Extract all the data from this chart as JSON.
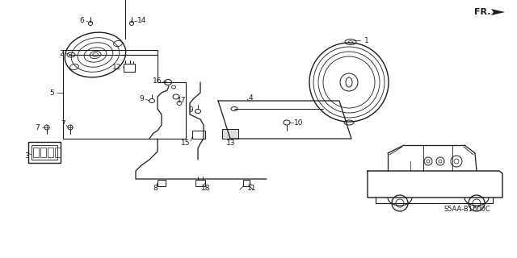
{
  "bg_color": "#ffffff",
  "line_color": "#1a1a1a",
  "text_color": "#1a1a1a",
  "diagram_code": "S5AA-B1600C",
  "fr_label": "FR.",
  "figsize": [
    6.4,
    3.2
  ],
  "dpi": 100
}
